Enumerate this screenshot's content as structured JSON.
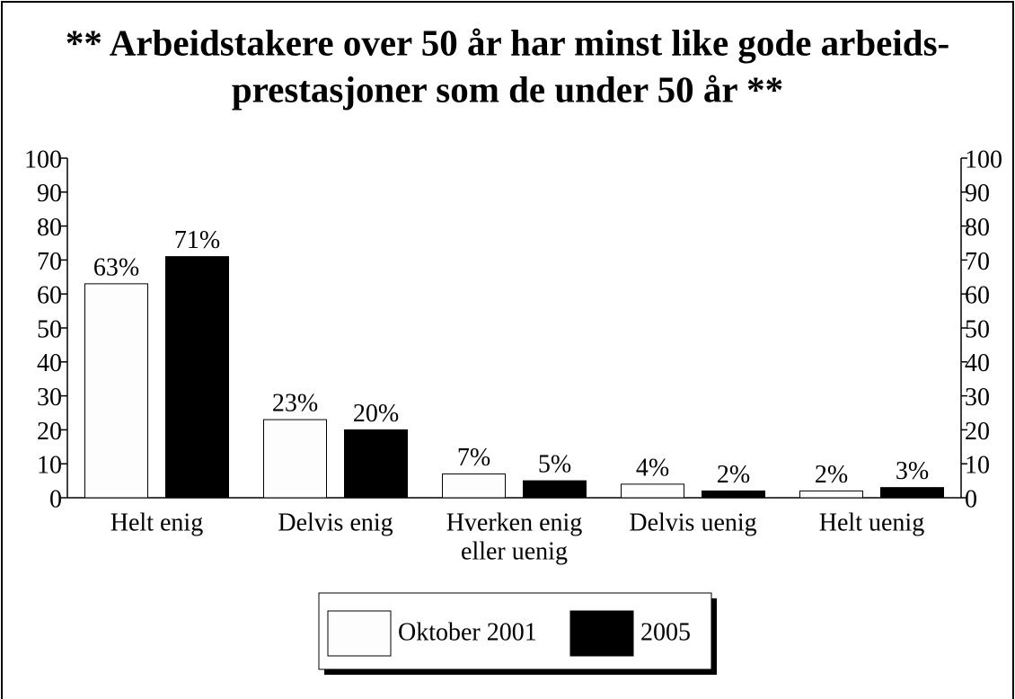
{
  "chart_data": {
    "type": "bar",
    "title": [
      "** Arbeidstakere over 50 år har minst like gode arbeids-",
      "prestasjoner som de under 50 år **"
    ],
    "categories": [
      [
        "Helt enig"
      ],
      [
        "Delvis enig"
      ],
      [
        "Hverken enig",
        "eller uenig"
      ],
      [
        "Delvis uenig"
      ],
      [
        "Helt uenig"
      ]
    ],
    "series": [
      {
        "name": "Oktober 2001",
        "color": "#fdfdfd",
        "values": [
          63,
          23,
          7,
          4,
          2
        ],
        "value_labels": [
          "63%",
          "23%",
          "7%",
          "4%",
          "2%"
        ]
      },
      {
        "name": "2005",
        "color": "#000000",
        "values": [
          71,
          20,
          5,
          2,
          3
        ],
        "value_labels": [
          "71%",
          "20%",
          "5%",
          "2%",
          "3%"
        ]
      }
    ],
    "ylim": [
      0,
      100
    ],
    "yticks": [
      0,
      10,
      20,
      30,
      40,
      50,
      60,
      70,
      80,
      90,
      100
    ],
    "legend": "bottom"
  }
}
